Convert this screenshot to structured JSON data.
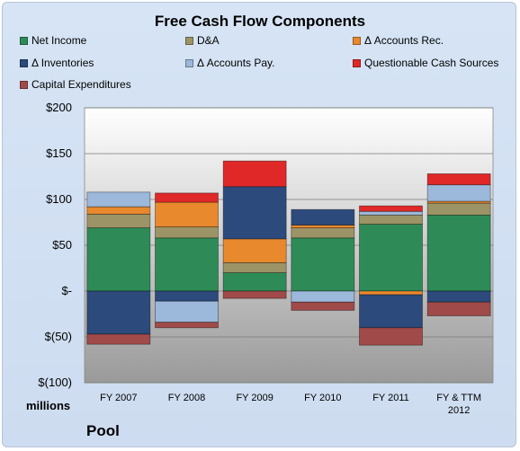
{
  "chart_data": {
    "type": "bar",
    "stacked": true,
    "title": "Free Cash Flow Components",
    "units_label": "millions",
    "footer": "Pool",
    "categories": [
      "FY 2007",
      "FY 2008",
      "FY 2009",
      "FY 2010",
      "FY 2011",
      "FY & TTM 2012"
    ],
    "category_lines": [
      [
        "FY 2007"
      ],
      [
        "FY 2008"
      ],
      [
        "FY 2009"
      ],
      [
        "FY 2010"
      ],
      [
        "FY 2011"
      ],
      [
        "FY & TTM",
        "2012"
      ]
    ],
    "y_ticks": [
      200,
      150,
      100,
      50,
      0,
      -50,
      -100
    ],
    "y_tick_labels": [
      "$200",
      "$150",
      "$100",
      "$50",
      "$-",
      "$(50)",
      "$(100)"
    ],
    "ylim": [
      -100,
      200
    ],
    "grid": true,
    "legend_position": "top",
    "series": [
      {
        "name": "Net Income",
        "color": "#2e8b57",
        "values": [
          69,
          58,
          20,
          58,
          73,
          83
        ]
      },
      {
        "name": "D&A",
        "color": "#9c9466",
        "values": [
          15,
          12,
          11,
          11,
          10,
          13
        ]
      },
      {
        "name": "Δ Accounts Rec.",
        "color": "#e8892d",
        "values": [
          8,
          27,
          26,
          3,
          -4,
          2
        ]
      },
      {
        "name": "Δ Inventories",
        "color": "#2c4a7c",
        "values": [
          -47,
          -11,
          57,
          17,
          -36,
          -12
        ]
      },
      {
        "name": "Δ Accounts Pay.",
        "color": "#9cb8da",
        "values": [
          16,
          -23,
          0,
          -12,
          4,
          18
        ]
      },
      {
        "name": "Questionable Cash Sources",
        "color": "#e02828",
        "values": [
          0,
          10,
          28,
          0,
          6,
          12
        ]
      },
      {
        "name": "Capital Expenditures",
        "color": "#a04a4a",
        "values": [
          -11,
          -6,
          -8,
          -9,
          -19,
          -15
        ]
      }
    ]
  }
}
